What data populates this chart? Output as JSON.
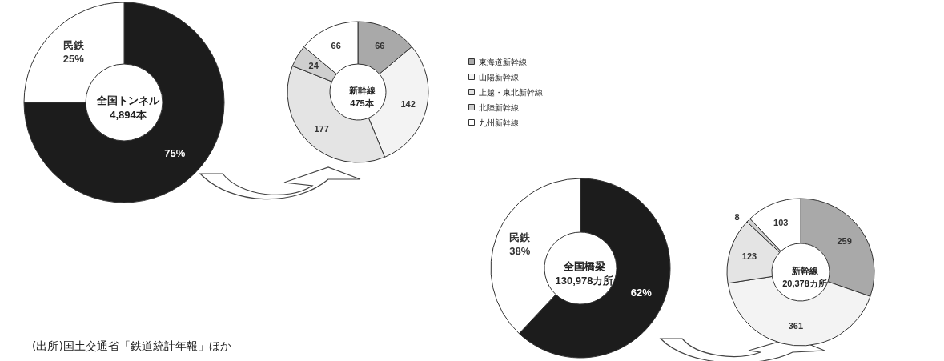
{
  "chart_data": [
    {
      "type": "donut",
      "title": "全国トンネル\n4,894本",
      "categories": [
        null,
        "民鉄"
      ],
      "values": [
        75,
        25
      ],
      "colors": [
        "#1c1c1c",
        "#ffffff"
      ],
      "value_labels": [
        "75%",
        "25%"
      ],
      "legend": false
    },
    {
      "type": "donut",
      "title": "新幹線\n475本",
      "categories": [
        "東海道新幹線",
        "山陽新幹線",
        "上越・東北新幹線",
        "北陸新幹線",
        "九州新幹線"
      ],
      "values": [
        66,
        142,
        177,
        24,
        66
      ],
      "colors": [
        "#a9a9a9",
        "#f3f3f3",
        "#e4e4e4",
        "#cfcfcf",
        "#ffffff"
      ],
      "data_labels": true,
      "legend": "right"
    },
    {
      "type": "donut",
      "title": "全国橋梁\n130,978カ所",
      "categories": [
        null,
        "民鉄"
      ],
      "values": [
        62,
        38
      ],
      "colors": [
        "#1c1c1c",
        "#ffffff"
      ],
      "value_labels": [
        "62%",
        "38%"
      ],
      "legend": false,
      "annotations": [
        "(出所)国土交通省「鉄道統計年報」ほか"
      ]
    },
    {
      "type": "donut",
      "title": "新幹線\n20,378カ所",
      "categories": [
        null,
        null,
        null,
        null,
        null
      ],
      "values": [
        259,
        361,
        123,
        8,
        103
      ],
      "colors": [
        "#a9a9a9",
        "#f3f3f3",
        "#e4e4e4",
        "#cfcfcf",
        "#ffffff"
      ],
      "data_labels": true,
      "legend": false
    }
  ]
}
